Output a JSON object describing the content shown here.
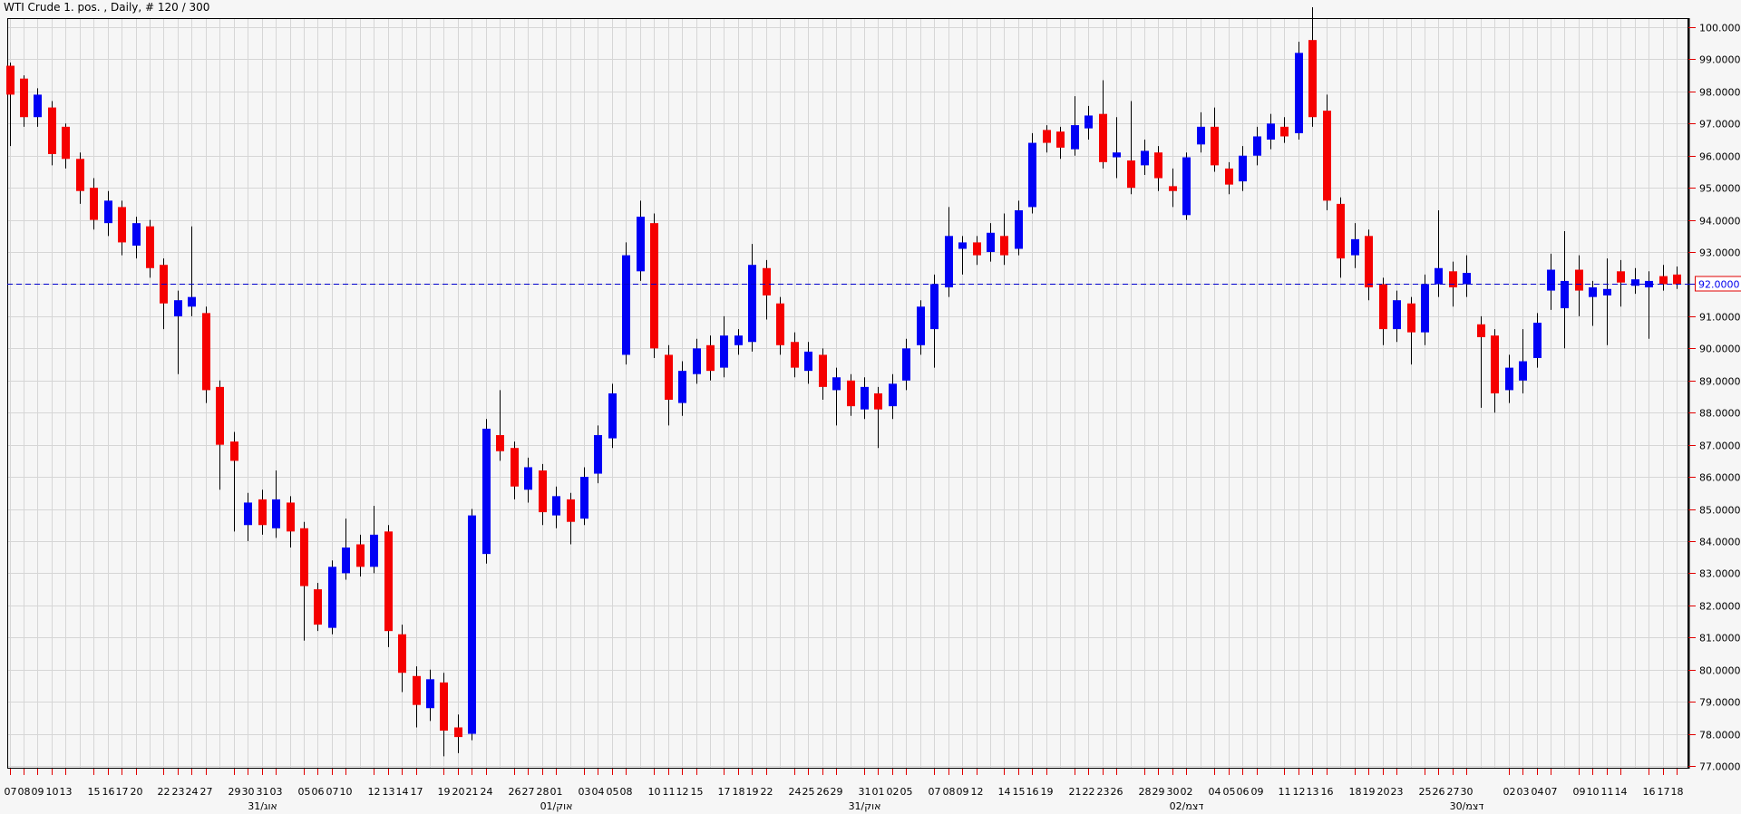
{
  "title": "WTI Crude 1. pos. , Daily, # 120 / 300",
  "colors": {
    "background": "#f6f6f6",
    "plot_background": "#f6f6f6",
    "grid": "#d6d6d6",
    "border": "#000000",
    "candle_up": "#0000f5",
    "candle_down": "#f50000",
    "wick": "#000000",
    "axis_tick": "#e00000",
    "axis_text": "#000000",
    "current_price_line": "#0000cd",
    "current_price_text": "#0000ee",
    "current_price_box_border": "#e00000",
    "current_price_box_fill": "#ffffff"
  },
  "chart_data": {
    "type": "candlestick",
    "title": "WTI Crude 1. pos. , Daily, # 120 / 300",
    "ylabel": "",
    "xlabel": "",
    "ylim": [
      77,
      100
    ],
    "y_tick_step": 1,
    "grid": "on",
    "y_tick_labels": [
      "100.0000",
      "99.0000",
      "98.0000",
      "97.0000",
      "96.0000",
      "95.0000",
      "94.0000",
      "93.0000",
      "92.0000",
      "91.0000",
      "90.0000",
      "89.0000",
      "88.0000",
      "87.0000",
      "86.0000",
      "85.0000",
      "84.0000",
      "83.0000",
      "82.0000",
      "81.0000",
      "80.0000",
      "79.0000",
      "78.0000",
      "77.0000"
    ],
    "current_price": 92.0,
    "current_price_label": "92.0000",
    "month_labels": [
      {
        "bar": 18,
        "label": "31/אוג"
      },
      {
        "bar": 39,
        "label": "01/אוק"
      },
      {
        "bar": 61,
        "label": "31/אוק"
      },
      {
        "bar": 84,
        "label": "02/דצמ"
      },
      {
        "bar": 104,
        "label": "30/דצמ"
      }
    ],
    "bars_format": [
      "date",
      "open",
      "high",
      "low",
      "close",
      "has_tick_label"
    ],
    "bars": [
      [
        "07",
        98.8,
        98.9,
        96.3,
        97.9,
        1
      ],
      [
        "08",
        98.4,
        98.5,
        96.9,
        97.2,
        1
      ],
      [
        "09",
        97.2,
        98.1,
        96.9,
        97.9,
        1
      ],
      [
        "10",
        97.5,
        97.7,
        95.7,
        96.05,
        1
      ],
      [
        "13",
        96.9,
        97.0,
        95.6,
        95.9,
        1
      ],
      [
        "14",
        95.9,
        96.1,
        94.5,
        94.9,
        0
      ],
      [
        "15",
        95.0,
        95.3,
        93.7,
        94.0,
        1
      ],
      [
        "16",
        93.9,
        94.9,
        93.5,
        94.6,
        1
      ],
      [
        "17",
        94.4,
        94.6,
        92.9,
        93.3,
        1
      ],
      [
        "20",
        93.2,
        94.1,
        92.8,
        93.9,
        1
      ],
      [
        "21",
        93.8,
        94.0,
        92.2,
        92.5,
        0
      ],
      [
        "22",
        92.6,
        92.8,
        90.6,
        91.4,
        1
      ],
      [
        "23",
        91.0,
        91.8,
        89.2,
        91.5,
        1
      ],
      [
        "24",
        91.3,
        93.8,
        91.0,
        91.6,
        1
      ],
      [
        "27",
        91.1,
        91.3,
        88.3,
        88.7,
        1
      ],
      [
        "28",
        88.8,
        89.0,
        85.6,
        87.0,
        0
      ],
      [
        "29",
        87.1,
        87.4,
        84.3,
        86.5,
        1
      ],
      [
        "30",
        84.5,
        85.5,
        84.0,
        85.2,
        1
      ],
      [
        "31",
        85.3,
        85.6,
        84.2,
        84.5,
        1
      ],
      [
        "03",
        84.4,
        86.2,
        84.1,
        85.3,
        1
      ],
      [
        "04",
        85.2,
        85.4,
        83.8,
        84.3,
        0
      ],
      [
        "05",
        84.4,
        84.6,
        80.9,
        82.6,
        1
      ],
      [
        "06",
        82.5,
        82.7,
        81.2,
        81.4,
        1
      ],
      [
        "07",
        81.3,
        83.4,
        81.1,
        83.2,
        1
      ],
      [
        "10",
        83.0,
        84.7,
        82.8,
        83.8,
        1
      ],
      [
        "11",
        83.9,
        84.2,
        82.9,
        83.2,
        0
      ],
      [
        "12",
        83.2,
        85.1,
        83.0,
        84.2,
        1
      ],
      [
        "13",
        84.3,
        84.5,
        80.7,
        81.2,
        1
      ],
      [
        "14",
        81.1,
        81.4,
        79.3,
        79.9,
        1
      ],
      [
        "17",
        79.8,
        80.1,
        78.2,
        78.9,
        1
      ],
      [
        "18",
        78.8,
        80.0,
        78.4,
        79.7,
        0
      ],
      [
        "19",
        79.6,
        79.9,
        77.3,
        78.1,
        1
      ],
      [
        "20",
        78.2,
        78.6,
        77.4,
        77.9,
        1
      ],
      [
        "21",
        78.0,
        85.0,
        77.8,
        84.8,
        1
      ],
      [
        "24",
        83.6,
        87.8,
        83.3,
        87.5,
        1
      ],
      [
        "25",
        87.3,
        88.7,
        86.5,
        86.8,
        0
      ],
      [
        "26",
        86.9,
        87.1,
        85.3,
        85.7,
        1
      ],
      [
        "27",
        85.6,
        86.6,
        85.2,
        86.3,
        1
      ],
      [
        "28",
        86.2,
        86.4,
        84.5,
        84.9,
        1
      ],
      [
        "01",
        84.8,
        85.7,
        84.4,
        85.4,
        1
      ],
      [
        "02",
        85.3,
        85.5,
        83.9,
        84.6,
        0
      ],
      [
        "03",
        84.7,
        86.3,
        84.5,
        86.0,
        1
      ],
      [
        "04",
        86.1,
        87.6,
        85.8,
        87.3,
        1
      ],
      [
        "05",
        87.2,
        88.9,
        86.9,
        88.6,
        1
      ],
      [
        "08",
        89.8,
        93.3,
        89.5,
        92.9,
        1
      ],
      [
        "09",
        92.4,
        94.6,
        92.1,
        94.1,
        0
      ],
      [
        "10",
        93.9,
        94.2,
        89.7,
        90.0,
        1
      ],
      [
        "11",
        89.8,
        90.1,
        87.6,
        88.4,
        1
      ],
      [
        "12",
        88.3,
        89.6,
        87.9,
        89.3,
        1
      ],
      [
        "15",
        89.2,
        90.3,
        88.9,
        90.0,
        1
      ],
      [
        "16",
        90.1,
        90.4,
        89.0,
        89.3,
        0
      ],
      [
        "17",
        89.4,
        91.0,
        89.1,
        90.4,
        1
      ],
      [
        "18",
        90.1,
        90.6,
        89.8,
        90.4,
        1
      ],
      [
        "19",
        90.2,
        93.25,
        89.9,
        92.6,
        1
      ],
      [
        "22",
        92.5,
        92.75,
        90.9,
        91.65,
        1
      ],
      [
        "23",
        91.4,
        91.6,
        89.8,
        90.1,
        0
      ],
      [
        "24",
        90.2,
        90.5,
        89.1,
        89.4,
        1
      ],
      [
        "25",
        89.3,
        90.2,
        88.9,
        89.9,
        1
      ],
      [
        "26",
        89.8,
        90.0,
        88.4,
        88.8,
        1
      ],
      [
        "29",
        88.7,
        89.4,
        87.6,
        89.1,
        1
      ],
      [
        "30",
        89.0,
        89.2,
        87.9,
        88.2,
        0
      ],
      [
        "31",
        88.1,
        89.1,
        87.8,
        88.8,
        1
      ],
      [
        "01",
        88.6,
        88.8,
        86.9,
        88.1,
        1
      ],
      [
        "02",
        88.2,
        89.2,
        87.8,
        88.9,
        1
      ],
      [
        "05",
        89.0,
        90.3,
        88.7,
        90.0,
        1
      ],
      [
        "06",
        90.1,
        91.5,
        89.8,
        91.3,
        0
      ],
      [
        "07",
        90.6,
        92.3,
        89.4,
        92.0,
        1
      ],
      [
        "08",
        91.9,
        94.4,
        91.6,
        93.5,
        1
      ],
      [
        "09",
        93.1,
        93.5,
        92.3,
        93.3,
        1
      ],
      [
        "12",
        93.3,
        93.5,
        92.6,
        92.9,
        1
      ],
      [
        "13",
        93.0,
        93.9,
        92.7,
        93.6,
        0
      ],
      [
        "14",
        93.5,
        94.2,
        92.6,
        92.9,
        1
      ],
      [
        "15",
        93.1,
        94.6,
        92.9,
        94.3,
        1
      ],
      [
        "16",
        94.4,
        96.7,
        94.2,
        96.4,
        1
      ],
      [
        "19",
        96.8,
        96.95,
        96.1,
        96.4,
        1
      ],
      [
        "20",
        96.75,
        96.9,
        95.9,
        96.25,
        0
      ],
      [
        "21",
        96.2,
        97.85,
        96.0,
        96.95,
        1
      ],
      [
        "22",
        96.85,
        97.55,
        96.5,
        97.25,
        1
      ],
      [
        "23",
        97.3,
        98.35,
        95.6,
        95.8,
        1
      ],
      [
        "26",
        95.95,
        97.2,
        95.3,
        96.1,
        1
      ],
      [
        "27",
        95.85,
        97.7,
        94.8,
        95.0,
        0
      ],
      [
        "28",
        95.7,
        96.5,
        95.4,
        96.15,
        1
      ],
      [
        "29",
        96.1,
        96.3,
        94.9,
        95.3,
        1
      ],
      [
        "30",
        95.05,
        95.6,
        94.4,
        94.9,
        1
      ],
      [
        "02",
        94.15,
        96.1,
        94.0,
        95.95,
        1
      ],
      [
        "03",
        96.35,
        97.35,
        96.1,
        96.9,
        0
      ],
      [
        "04",
        96.9,
        97.5,
        95.5,
        95.7,
        1
      ],
      [
        "05",
        95.6,
        95.8,
        94.8,
        95.1,
        1
      ],
      [
        "06",
        95.2,
        96.3,
        94.9,
        96.0,
        1
      ],
      [
        "09",
        96.0,
        96.9,
        95.7,
        96.6,
        1
      ],
      [
        "10",
        96.5,
        97.3,
        96.2,
        97.0,
        0
      ],
      [
        "11",
        96.9,
        97.2,
        96.4,
        96.6,
        1
      ],
      [
        "12",
        96.7,
        99.55,
        96.5,
        99.2,
        1
      ],
      [
        "13",
        99.6,
        100.62,
        96.9,
        97.2,
        1
      ],
      [
        "16",
        97.4,
        97.9,
        94.3,
        94.6,
        1
      ],
      [
        "17",
        94.5,
        94.7,
        92.2,
        92.8,
        0
      ],
      [
        "18",
        92.9,
        93.9,
        92.5,
        93.4,
        1
      ],
      [
        "19",
        93.5,
        93.7,
        91.5,
        91.9,
        1
      ],
      [
        "20",
        92.0,
        92.2,
        90.1,
        90.6,
        1
      ],
      [
        "23",
        90.6,
        91.8,
        90.2,
        91.5,
        1
      ],
      [
        "24",
        91.4,
        91.6,
        89.5,
        90.5,
        0
      ],
      [
        "25",
        90.5,
        92.3,
        90.1,
        92.0,
        1
      ],
      [
        "26",
        92.0,
        94.3,
        91.6,
        92.5,
        1
      ],
      [
        "27",
        92.4,
        92.7,
        91.3,
        91.9,
        1
      ],
      [
        "30",
        92.0,
        92.9,
        91.6,
        92.35,
        1
      ],
      [
        "31",
        90.75,
        91.0,
        88.15,
        90.35,
        0
      ],
      [
        "01",
        90.4,
        90.6,
        88.0,
        88.6,
        0
      ],
      [
        "02",
        88.7,
        89.8,
        88.3,
        89.4,
        1
      ],
      [
        "03",
        89.0,
        90.6,
        88.6,
        89.6,
        1
      ],
      [
        "04",
        89.7,
        91.1,
        89.4,
        90.8,
        1
      ],
      [
        "07",
        91.8,
        92.95,
        91.2,
        92.45,
        1
      ],
      [
        "08",
        91.25,
        93.65,
        90.0,
        92.1,
        0
      ],
      [
        "09",
        92.45,
        92.9,
        91.0,
        91.8,
        1
      ],
      [
        "10",
        91.6,
        92.1,
        90.7,
        91.9,
        1
      ],
      [
        "11",
        91.65,
        92.8,
        90.1,
        91.85,
        1
      ],
      [
        "14",
        92.4,
        92.75,
        91.3,
        92.05,
        1
      ],
      [
        "15",
        91.95,
        92.5,
        91.7,
        92.15,
        0
      ],
      [
        "16",
        91.9,
        92.4,
        90.3,
        92.1,
        1
      ],
      [
        "17",
        92.25,
        92.6,
        91.8,
        92.0,
        1
      ],
      [
        "18",
        92.3,
        92.55,
        91.85,
        92.0,
        1
      ]
    ]
  }
}
